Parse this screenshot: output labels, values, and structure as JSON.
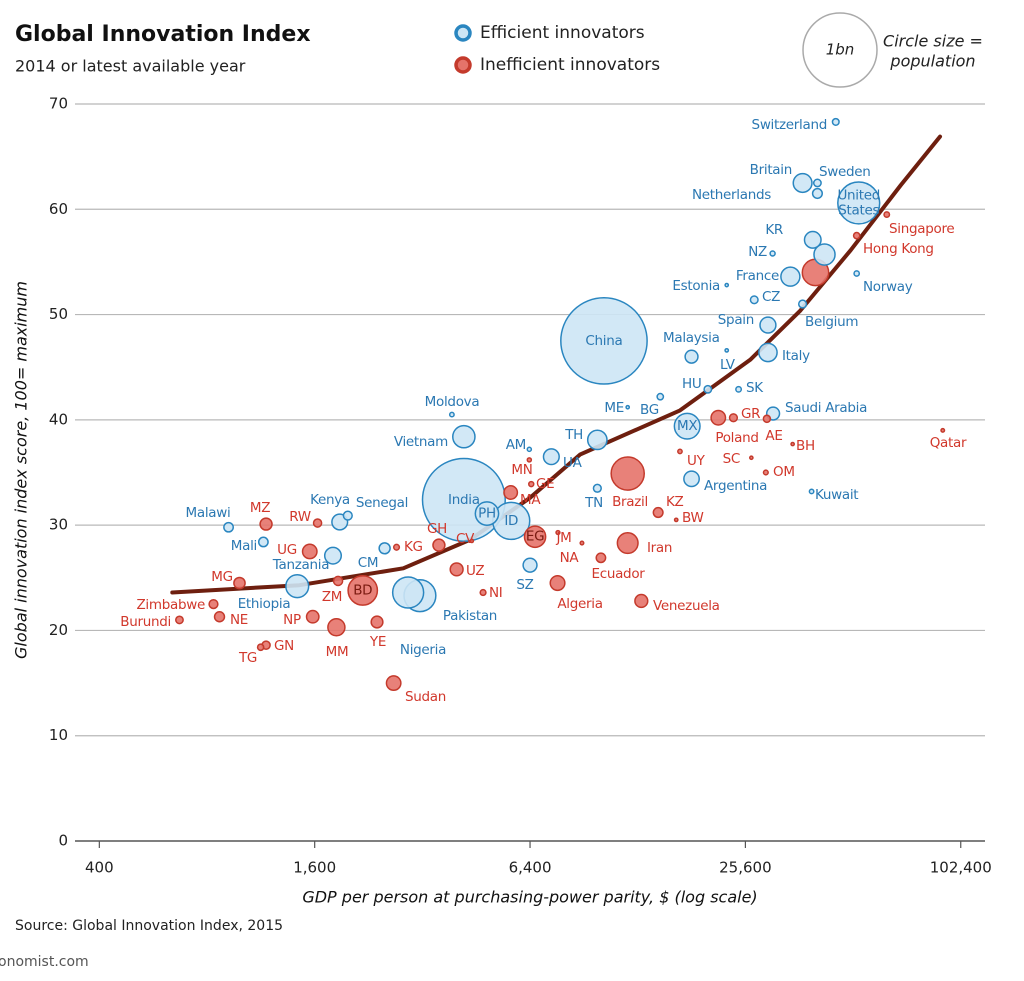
{
  "chart_data": {
    "type": "bubble",
    "title": "Global Innovation Index",
    "subtitle": "2014 or latest available year",
    "x_label": "GDP per person at purchasing-power parity, $ (log scale)",
    "y_label": "Global innovation index score, 100= maximum",
    "source": "Source: Global Innovation Index, 2015",
    "footer": "onomist.com",
    "x_log": true,
    "grid": true,
    "xlim": [
      342,
      119700
    ],
    "xticks": [
      400,
      {
        "value": 1600,
        "label": "1,600"
      },
      {
        "value": 6400,
        "label": "6,400"
      },
      {
        "value": 25600,
        "label": "25,600"
      },
      {
        "value": 102400,
        "label": "102,400"
      }
    ],
    "ylim": [
      0,
      70
    ],
    "yticks": [
      0,
      10,
      20,
      30,
      40,
      50,
      60,
      70
    ],
    "size_legend": {
      "label": "1bn",
      "value": 1000,
      "note": [
        "Circle size =",
        "population"
      ]
    },
    "trend": {
      "color": "#6e1f0f",
      "x": [
        640,
        1450,
        2830,
        4340,
        6400,
        8830,
        16800,
        26400,
        36500,
        50400,
        69600,
        89600
      ],
      "y": [
        23.6,
        24.3,
        25.9,
        28.6,
        32.6,
        36.7,
        40.9,
        45.7,
        50.4,
        56.1,
        62.3,
        66.9
      ]
    },
    "series": [
      {
        "name": "Efficient innovators",
        "color": "#2a86c0",
        "fill": "#cde6f5",
        "text_color": "#2b78b2",
        "labels": [
          "Switzerland",
          "Britain",
          "Sweden",
          "Netherlands",
          "United States",
          "KR",
          "NZ",
          "France",
          "Estonia",
          "CZ",
          "Spain",
          "Belgium",
          "Norway",
          "China",
          "Malaysia",
          "LV",
          "Italy",
          "HU",
          "SK",
          "ME",
          "BG",
          "Saudi Arabia",
          "MX",
          "Moldova",
          "Vietnam",
          "TH",
          "AM",
          "UA",
          "Argentina",
          "Kuwait",
          "TN",
          "India",
          "PH",
          "ID",
          "Kenya",
          "Senegal",
          "Malawi",
          "Mali",
          "CM",
          "Tanzania",
          "Ethiopia",
          "Pakistan",
          "Nigeria",
          "SZ",
          null
        ],
        "x": [
          45800,
          37000,
          40700,
          40700,
          53100,
          39500,
          30500,
          34200,
          22700,
          27100,
          29600,
          37000,
          52400,
          10300,
          18100,
          22700,
          29600,
          20100,
          24500,
          12000,
          14800,
          30600,
          17600,
          3870,
          4180,
          9870,
          6370,
          7340,
          18100,
          39200,
          9870,
          4180,
          4850,
          5670,
          1880,
          1980,
          919,
          1150,
          2510,
          1800,
          1430,
          3150,
          2920,
          6400,
          42600
        ],
        "values": [
          68.3,
          62.5,
          62.5,
          61.5,
          60.6,
          57.1,
          55.8,
          53.6,
          52.8,
          51.4,
          49,
          51,
          53.9,
          47.5,
          46,
          46.6,
          46.4,
          42.9,
          42.9,
          41.2,
          42.2,
          40.6,
          39.4,
          40.5,
          38.4,
          38.1,
          37.2,
          36.5,
          34.4,
          33.2,
          33.5,
          32.4,
          31.1,
          30.4,
          30.3,
          30.9,
          29.8,
          28.4,
          27.8,
          27.1,
          24.2,
          23.3,
          23.6,
          26.2,
          55.7
        ],
        "sizes": [
          8,
          64,
          10,
          17,
          320,
          50,
          4.5,
          66,
          1.3,
          10.5,
          46,
          11,
          5,
          1360,
          30,
          2,
          61,
          10,
          5.4,
          0.6,
          7.2,
          30,
          120,
          3.5,
          90,
          68,
          3,
          45,
          43,
          3.5,
          11,
          1250,
          99,
          250,
          45,
          14,
          16,
          16,
          22,
          50,
          95,
          185,
          175,
          35,
          81
        ]
      },
      {
        "name": "Inefficient innovators",
        "color": "#c43a2c",
        "fill": "#e5736a",
        "text_color": "#d1382c",
        "labels": [
          "Singapore",
          "Hong Kong",
          "GR",
          "Poland",
          "AE",
          "BH",
          "SC",
          "OM",
          "Qatar",
          "UY",
          "Brazil",
          "Iran",
          "KZ",
          "BW",
          "MN",
          "GE",
          "MA",
          "EG",
          "JM",
          "NA",
          "Ecuador",
          "Algeria",
          "Venezuela",
          "CV",
          "GH",
          "UZ",
          "NI",
          "KG",
          "BD",
          "ZM",
          "MZ",
          "RW",
          "UG",
          "MG",
          "Zimbabwe",
          "NE",
          "Burundi",
          "NP",
          "MM",
          "YE",
          "TG",
          "GN",
          "Sudan",
          null
        ],
        "x": [
          63600,
          52400,
          23700,
          21500,
          29400,
          34700,
          26600,
          29200,
          91200,
          16800,
          12000,
          12000,
          14600,
          16400,
          6370,
          6450,
          5650,
          6610,
          7660,
          8940,
          10100,
          7640,
          13100,
          4400,
          3560,
          3990,
          4730,
          2710,
          2180,
          1860,
          1170,
          1630,
          1550,
          986,
          834,
          867,
          670,
          1580,
          1840,
          2390,
          1130,
          1170,
          2660,
          40200
        ],
        "values": [
          59.5,
          57.5,
          40.2,
          40.2,
          40.1,
          37.7,
          36.4,
          35,
          39,
          37,
          34.9,
          28.3,
          31.2,
          30.5,
          36.2,
          33.9,
          33.1,
          28.9,
          29.3,
          28.3,
          26.9,
          24.5,
          22.8,
          28.5,
          28.1,
          25.8,
          23.6,
          27.9,
          23.8,
          24.7,
          30.1,
          30.2,
          27.5,
          24.5,
          22.5,
          21.3,
          21,
          21.3,
          20.3,
          20.8,
          18.4,
          18.6,
          15,
          54
        ],
        "sizes": [
          5.4,
          7,
          11,
          38,
          9,
          1.3,
          0.1,
          4,
          2.2,
          3.4,
          200,
          78,
          17,
          2,
          3,
          4.5,
          33,
          82,
          2.7,
          2.3,
          16,
          39,
          30,
          0.5,
          26,
          30,
          6,
          5.8,
          157,
          15,
          26,
          12,
          38,
          23,
          14,
          18,
          10,
          28,
          53,
          25,
          7,
          12,
          38,
          127
        ]
      }
    ]
  }
}
